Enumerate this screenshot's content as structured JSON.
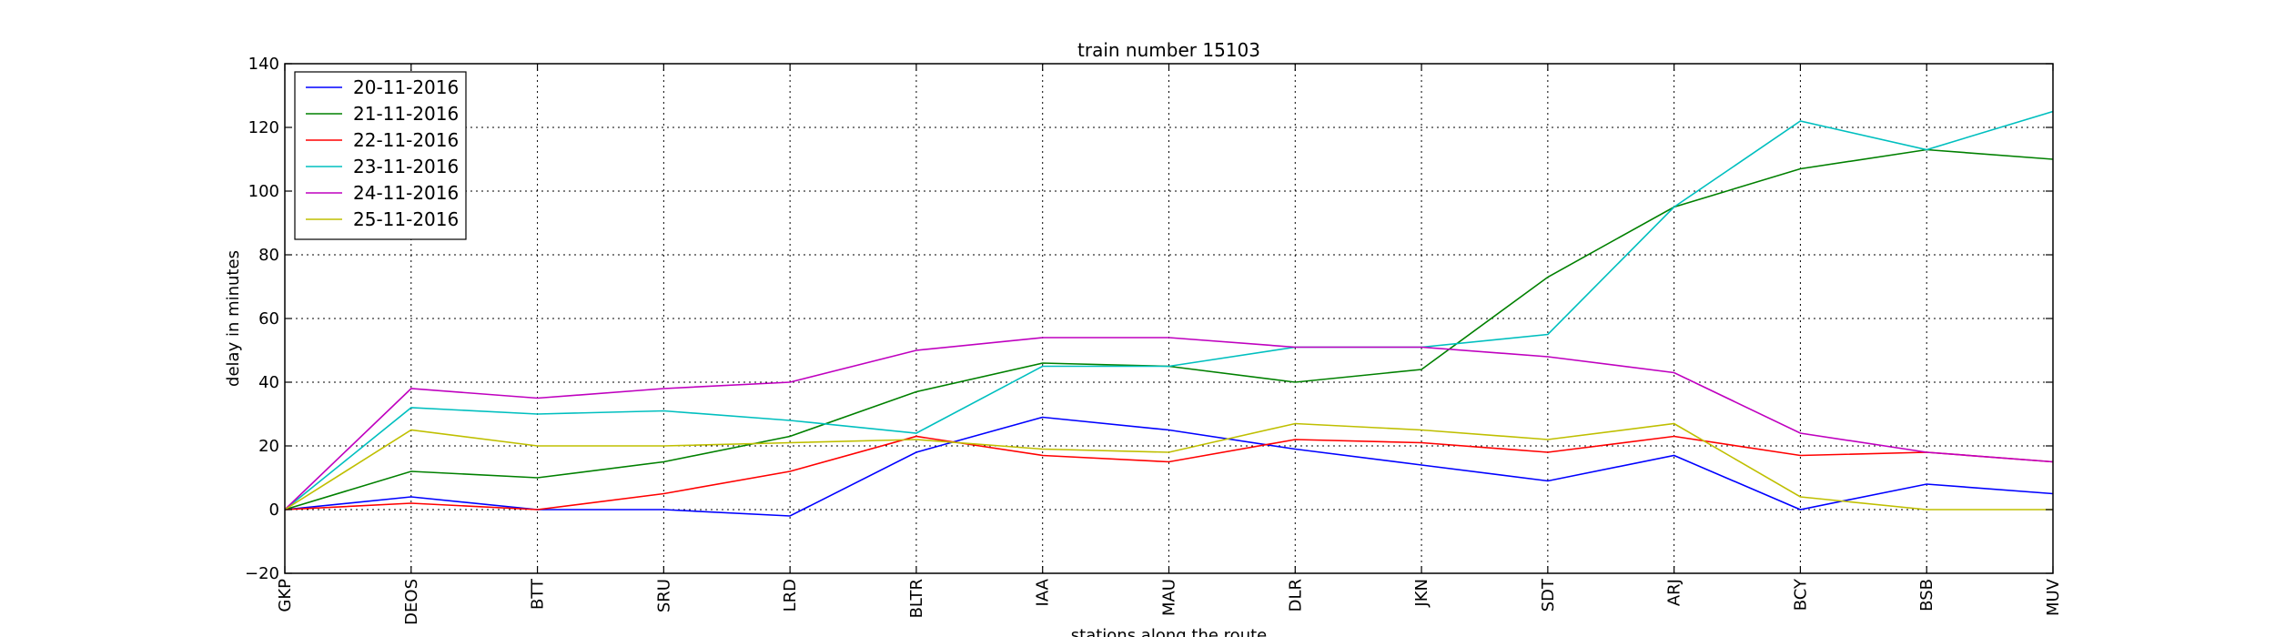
{
  "chart_data": {
    "type": "line",
    "title": "train number 15103",
    "xlabel": "stations along the route",
    "ylabel": "delay in minutes",
    "categories": [
      "GKP",
      "DEOS",
      "BTT",
      "SRU",
      "LRD",
      "BLTR",
      "IAA",
      "MAU",
      "DLR",
      "JKN",
      "SDT",
      "ARJ",
      "BCY",
      "BSB",
      "MUV"
    ],
    "ylim": [
      -20,
      140
    ],
    "yticks": [
      -20,
      0,
      20,
      40,
      60,
      80,
      100,
      120,
      140
    ],
    "grid": true,
    "legend_position": "top-left",
    "series": [
      {
        "name": "20-11-2016",
        "color": "#0000ff",
        "values": [
          0,
          4,
          0,
          0,
          -2,
          18,
          29,
          25,
          19,
          14,
          9,
          17,
          0,
          8,
          5
        ]
      },
      {
        "name": "21-11-2016",
        "color": "#008000",
        "values": [
          0,
          12,
          10,
          15,
          23,
          37,
          46,
          45,
          40,
          44,
          73,
          95,
          107,
          113,
          110
        ]
      },
      {
        "name": "22-11-2016",
        "color": "#ff0000",
        "values": [
          0,
          2,
          0,
          5,
          12,
          23,
          17,
          15,
          22,
          21,
          18,
          23,
          17,
          18,
          15
        ]
      },
      {
        "name": "23-11-2016",
        "color": "#00bfbf",
        "values": [
          0,
          32,
          30,
          31,
          28,
          24,
          45,
          45,
          51,
          51,
          55,
          95,
          122,
          113,
          125
        ]
      },
      {
        "name": "24-11-2016",
        "color": "#bf00bf",
        "values": [
          0,
          38,
          35,
          38,
          40,
          50,
          54,
          54,
          51,
          51,
          48,
          43,
          24,
          18,
          15
        ]
      },
      {
        "name": "25-11-2016",
        "color": "#bfbf00",
        "values": [
          0,
          25,
          20,
          20,
          21,
          22,
          19,
          18,
          27,
          25,
          22,
          27,
          4,
          0,
          0
        ]
      }
    ]
  }
}
